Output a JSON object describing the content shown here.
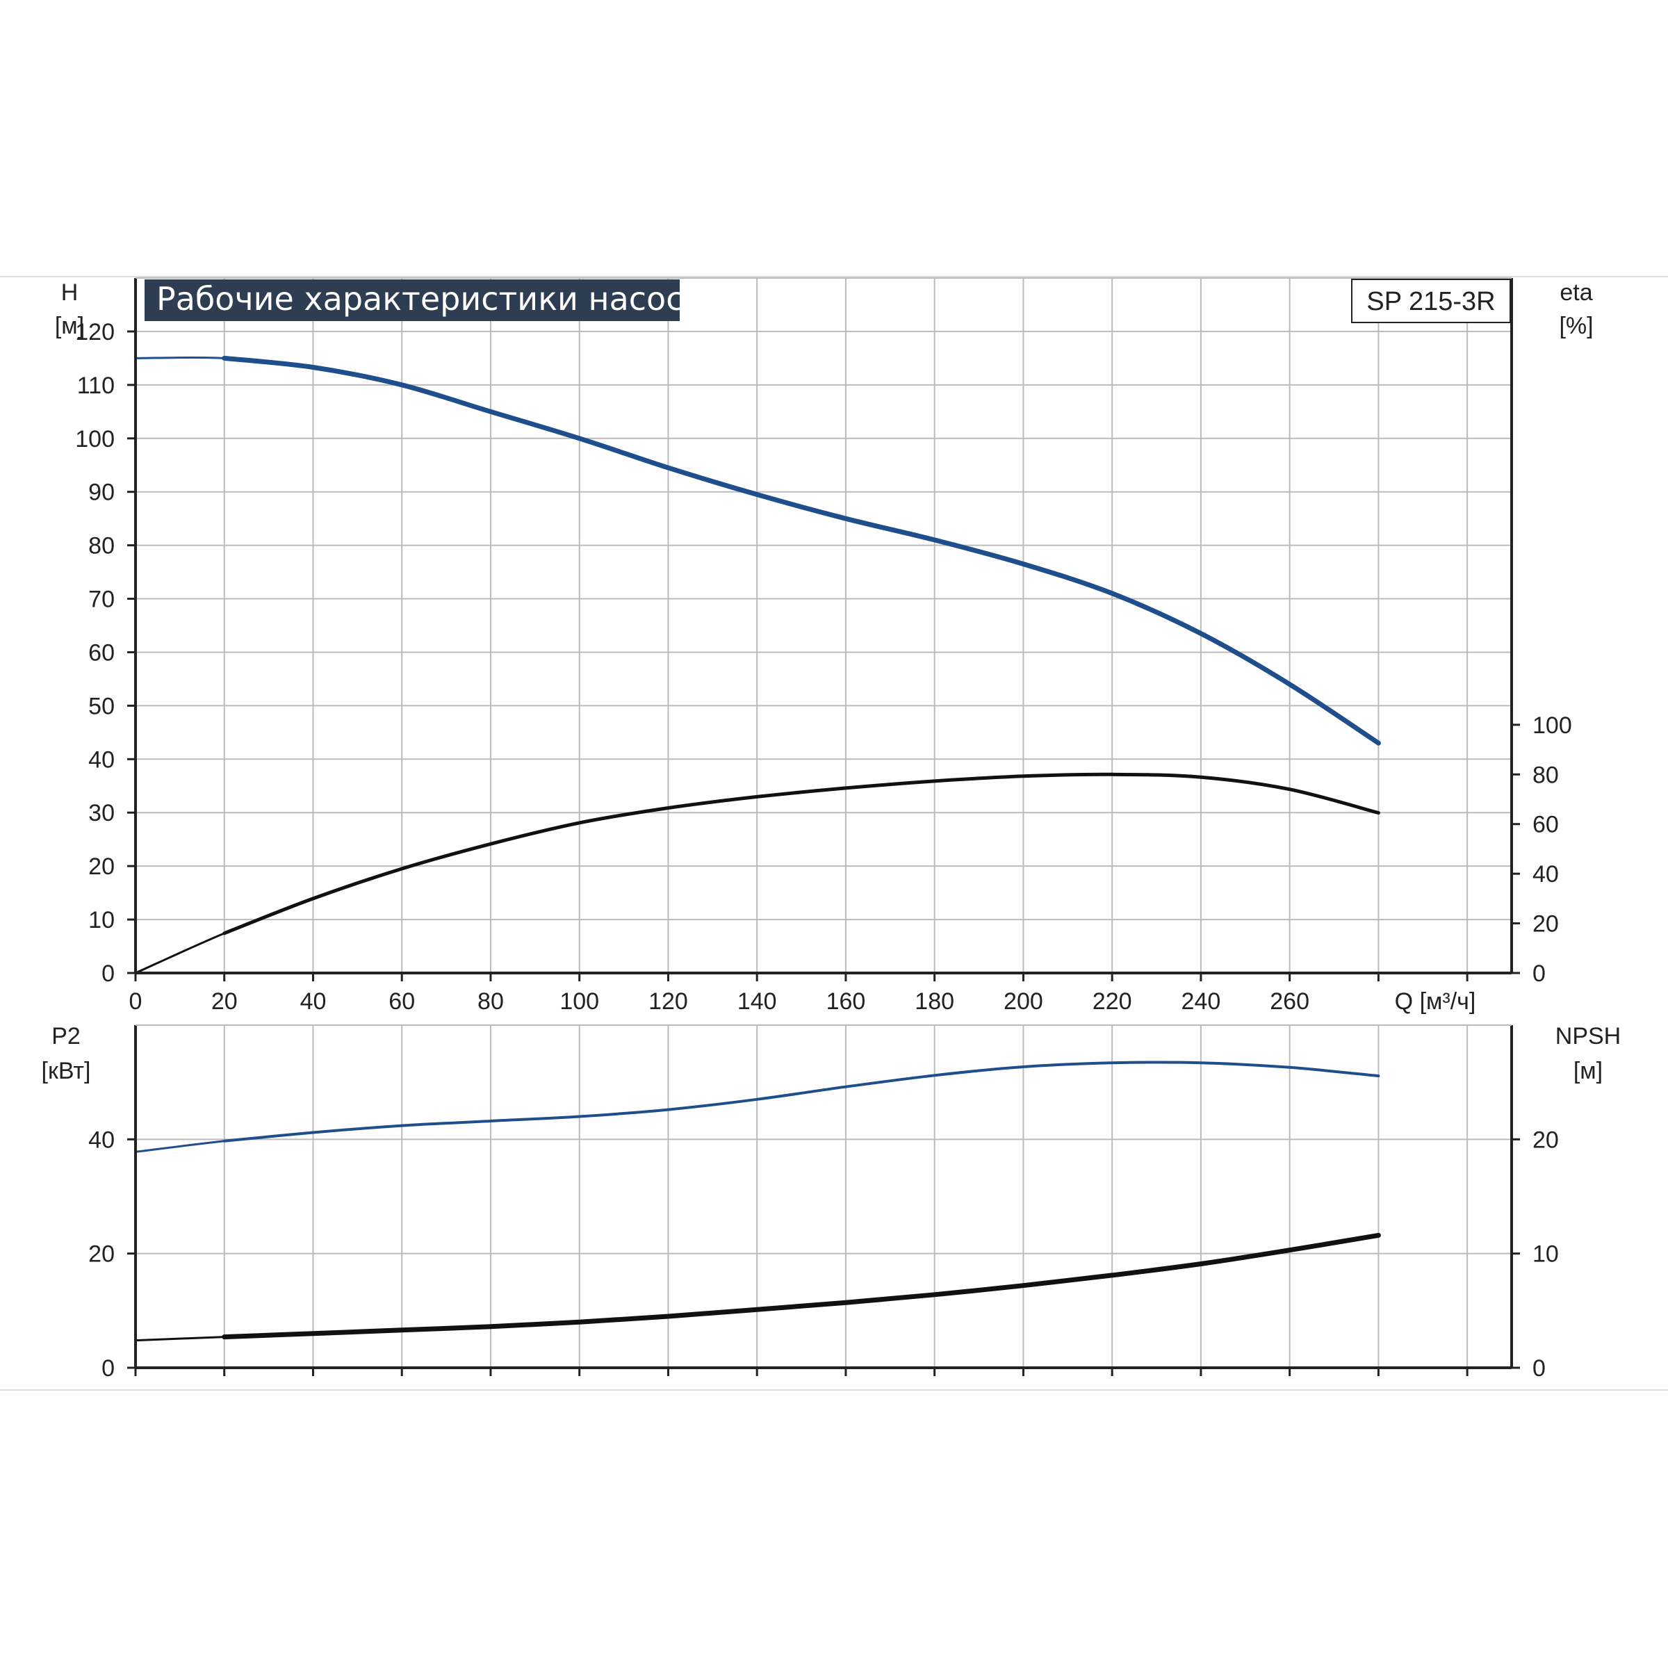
{
  "chart_data": [
    {
      "type": "line",
      "title": "Рабочие характеристики насоса",
      "model_label": "SP 215-3R",
      "y_left_label": [
        "H",
        "[м]"
      ],
      "y_right_label": [
        "eta",
        "[%]"
      ],
      "x_label": "Q [м³/ч]",
      "x_ticks": [
        "0",
        "20",
        "40",
        "60",
        "80",
        "100",
        "120",
        "140",
        "160",
        "180",
        "200",
        "220",
        "240",
        "260"
      ],
      "y_left_ticks": [
        "0",
        "10",
        "20",
        "30",
        "40",
        "50",
        "60",
        "70",
        "80",
        "90",
        "100",
        "110",
        "120"
      ],
      "y_right_ticks": [
        "0",
        "20",
        "40",
        "60",
        "80",
        "100"
      ],
      "xlim": [
        0,
        310
      ],
      "ylim_left": [
        0,
        130
      ],
      "ylim_right": [
        0,
        280
      ],
      "grid": true,
      "series": [
        {
          "axis": "left",
          "color": "#1f4e8c",
          "x": [
            0,
            20,
            40,
            60,
            80,
            100,
            120,
            140,
            160,
            180,
            200,
            220,
            240,
            260,
            280
          ],
          "y": [
            115,
            115,
            113.3,
            110,
            105,
            100,
            94.5,
            89.5,
            85,
            81,
            76.5,
            71,
            63.5,
            54,
            43
          ]
        },
        {
          "axis": "right",
          "color": "#111111",
          "x": [
            0,
            20,
            40,
            60,
            80,
            100,
            120,
            140,
            160,
            180,
            200,
            220,
            240,
            260,
            280
          ],
          "y": [
            0,
            16,
            30,
            42,
            52,
            60.5,
            66.5,
            71,
            74.5,
            77.3,
            79.3,
            80,
            78.9,
            74,
            64.5
          ]
        }
      ]
    },
    {
      "type": "line",
      "y_left_label": [
        "P2",
        "[кВт]"
      ],
      "y_right_label": [
        "NPSH",
        "[м]"
      ],
      "y_left_ticks": [
        "0",
        "20",
        "40"
      ],
      "y_right_ticks": [
        "0",
        "10",
        "20"
      ],
      "xlim": [
        0,
        310
      ],
      "ylim_left": [
        0,
        60
      ],
      "ylim_right": [
        0,
        30
      ],
      "grid": true,
      "series": [
        {
          "axis": "left",
          "color": "#1f4e8c",
          "x": [
            0,
            20,
            40,
            60,
            80,
            100,
            120,
            140,
            160,
            180,
            200,
            220,
            240,
            260,
            280
          ],
          "y": [
            37.8,
            39.7,
            41.2,
            42.4,
            43.2,
            44,
            45.2,
            47,
            49.2,
            51.2,
            52.7,
            53.4,
            53.4,
            52.6,
            51.1
          ]
        },
        {
          "axis": "right",
          "color": "#111111",
          "x": [
            0,
            20,
            40,
            60,
            80,
            100,
            120,
            140,
            160,
            180,
            200,
            220,
            240,
            260,
            280
          ],
          "y": [
            2.4,
            2.7,
            3,
            3.3,
            3.6,
            4,
            4.5,
            5.1,
            5.7,
            6.4,
            7.2,
            8.1,
            9.1,
            10.3,
            11.6
          ]
        }
      ]
    }
  ]
}
